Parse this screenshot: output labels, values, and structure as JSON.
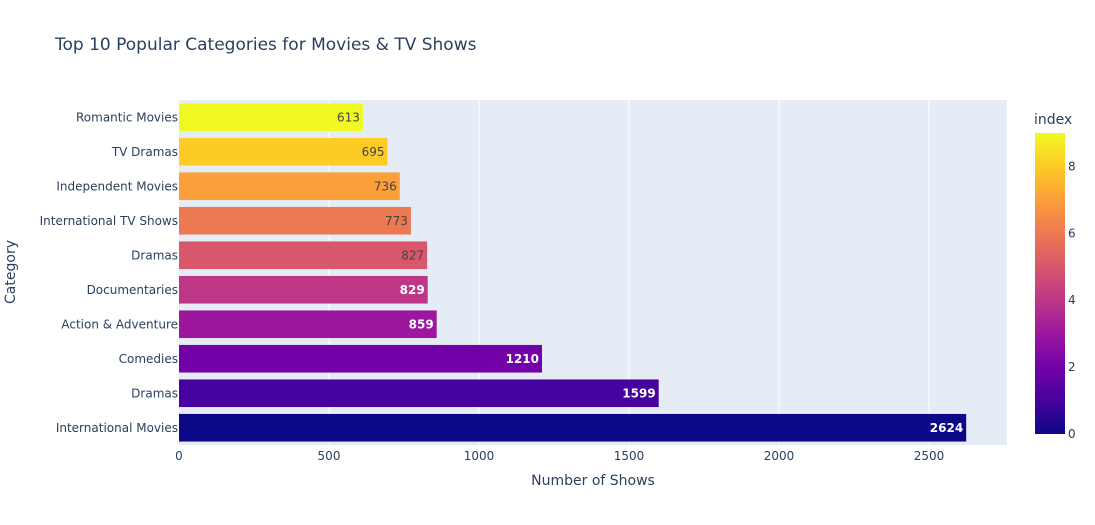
{
  "chart_data": {
    "type": "bar",
    "orientation": "horizontal",
    "title": "Top 10 Popular Categories for Movies & TV Shows",
    "xlabel": "Number of Shows",
    "ylabel": "Category",
    "xlim": [
      0,
      2760
    ],
    "x_ticks": [
      0,
      500,
      1000,
      1500,
      2000,
      2500
    ],
    "grid": true,
    "categories": [
      "International Movies",
      "Dramas",
      "Comedies",
      "Action & Adventure",
      "Documentaries",
      "Dramas",
      "International TV Shows",
      "Independent Movies",
      "TV Dramas",
      "Romantic Movies"
    ],
    "values": [
      2624,
      1599,
      1210,
      859,
      829,
      827,
      773,
      736,
      695,
      613
    ],
    "color_index": [
      0,
      1,
      2,
      3,
      4,
      5,
      6,
      7,
      8,
      9
    ],
    "colorbar": {
      "title": "index",
      "range": [
        0,
        9
      ],
      "ticks": [
        0,
        2,
        4,
        6,
        8
      ],
      "colorscale": [
        "#0d0887",
        "#46039f",
        "#7201a8",
        "#9c179e",
        "#bd3786",
        "#d8576b",
        "#ed7953",
        "#fb9f3a",
        "#fdca26",
        "#f0f921"
      ]
    },
    "plot_background": "#e5ecf6"
  }
}
